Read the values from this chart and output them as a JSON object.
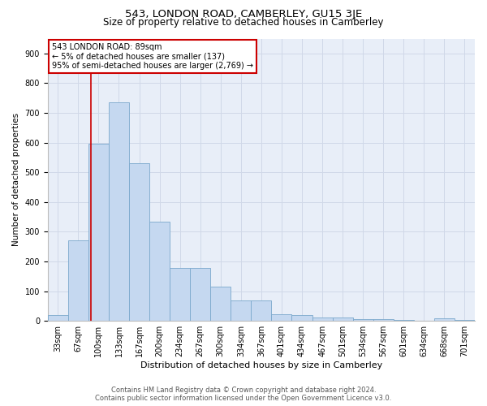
{
  "title": "543, LONDON ROAD, CAMBERLEY, GU15 3JE",
  "subtitle": "Size of property relative to detached houses in Camberley",
  "xlabel": "Distribution of detached houses by size in Camberley",
  "ylabel": "Number of detached properties",
  "categories": [
    "33sqm",
    "67sqm",
    "100sqm",
    "133sqm",
    "167sqm",
    "200sqm",
    "234sqm",
    "267sqm",
    "300sqm",
    "334sqm",
    "367sqm",
    "401sqm",
    "434sqm",
    "467sqm",
    "501sqm",
    "534sqm",
    "567sqm",
    "601sqm",
    "634sqm",
    "668sqm",
    "701sqm"
  ],
  "values": [
    20,
    270,
    595,
    735,
    530,
    335,
    178,
    178,
    115,
    68,
    68,
    22,
    20,
    12,
    11,
    7,
    7,
    2,
    0,
    8,
    2
  ],
  "bar_color": "#c5d8f0",
  "bar_edge_color": "#7aa8cc",
  "annotation_text_line1": "543 LONDON ROAD: 89sqm",
  "annotation_text_line2": "← 5% of detached houses are smaller (137)",
  "annotation_text_line3": "95% of semi-detached houses are larger (2,769) →",
  "annotation_box_facecolor": "#ffffff",
  "annotation_box_edgecolor": "#cc0000",
  "vline_color": "#cc0000",
  "vline_x": 1.62,
  "ylim": [
    0,
    950
  ],
  "yticks": [
    0,
    100,
    200,
    300,
    400,
    500,
    600,
    700,
    800,
    900
  ],
  "grid_color": "#d0d8e8",
  "bg_color": "#e8eef8",
  "footer_line1": "Contains HM Land Registry data © Crown copyright and database right 2024.",
  "footer_line2": "Contains public sector information licensed under the Open Government Licence v3.0.",
  "title_fontsize": 9.5,
  "subtitle_fontsize": 8.5,
  "xlabel_fontsize": 8,
  "ylabel_fontsize": 7.5,
  "tick_fontsize": 7,
  "annotation_fontsize": 7,
  "footer_fontsize": 6
}
